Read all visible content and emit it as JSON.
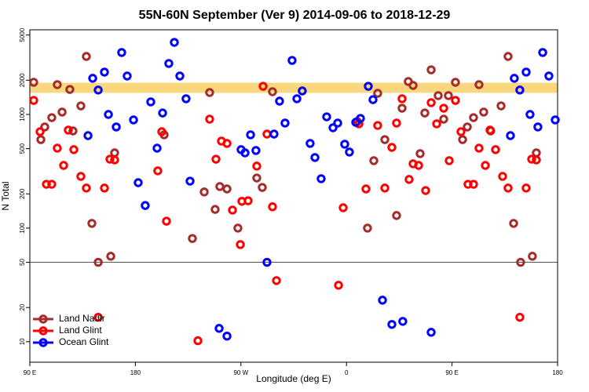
{
  "chart_data": {
    "type": "scatter",
    "title": "55N-60N September (Ver 9)   2014-09-06 to 2018-12-29",
    "x_label": "Longitude (deg E)",
    "y_label": "N Total",
    "xlim": [
      90,
      540
    ],
    "xticks": [
      {
        "value": 90,
        "label": "90 E"
      },
      {
        "value": 180,
        "label": "180"
      },
      {
        "value": 270,
        "label": "90 W"
      },
      {
        "value": 360,
        "label": "0"
      },
      {
        "value": 450,
        "label": "90 E"
      },
      {
        "value": 540,
        "label": "180"
      }
    ],
    "ylim": [
      6.6,
      5560
    ],
    "yticks": [
      10,
      20,
      50,
      100,
      200,
      500,
      1000,
      2000,
      5000
    ],
    "log_y": true,
    "hline": 50,
    "band": [
      1550,
      1900
    ],
    "band_color": "#f9d77e",
    "legend": "lower left",
    "series": [
      {
        "name": "Land Nadir",
        "color": "#a52a2a",
        "x": [
          93.3,
          99.4,
          102.7,
          108.7,
          113.4,
          117.5,
          124.1,
          126.8,
          133.5,
          138.2,
          142.9,
          148.3,
          159,
          162.3,
          204.5,
          228.6,
          238.7,
          243.3,
          248,
          252,
          258.1,
          267.4,
          283.5,
          288.2,
          296.9,
          369.2,
          377.9,
          383.3,
          386.6,
          392.7,
          402.7,
          407.4,
          412.7,
          416.8,
          422.8,
          426.8,
          432.2,
          438.2,
          442.9,
          446.9,
          452.9,
          459,
          463,
          468.3,
          473,
          477,
          483,
          491.8,
          497.8,
          502.5,
          508.5,
          518.5,
          521.9
        ],
        "values": [
          1920,
          601,
          776,
          938,
          1830,
          1050,
          1660,
          716,
          1190,
          3240,
          110,
          50,
          56.5,
          459,
          662,
          81,
          208,
          1560,
          146,
          232,
          221,
          100,
          276,
          228,
          1585,
          867,
          100,
          392,
          1535,
          601,
          129,
          1135,
          1950,
          1800,
          452,
          1030,
          2470,
          1465,
          909,
          1465,
          1920,
          601,
          776,
          938,
          1830,
          1050,
          716,
          1190,
          3240,
          110,
          50,
          56.5,
          459
        ]
      },
      {
        "name": "Land Glint",
        "color": "#ff0000",
        "x": [
          93.3,
          98.7,
          104.1,
          108.7,
          113.4,
          118.8,
          122.8,
          127.5,
          133.5,
          138.2,
          148.3,
          153.6,
          158.3,
          162.3,
          199.1,
          202.5,
          206.5,
          233.3,
          243.3,
          248.7,
          253.4,
          258.1,
          262.8,
          269.5,
          270.8,
          276.1,
          283.5,
          288.9,
          292.2,
          296.9,
          300.3,
          353.2,
          357.2,
          370.6,
          376.6,
          386.6,
          392.7,
          398.7,
          402.7,
          407.4,
          413.4,
          416.8,
          421.5,
          427.5,
          432.2,
          436.9,
          442.9,
          447.6,
          452.9,
          457.6,
          463.6,
          468.3,
          473,
          478.4,
          482.4,
          487.1,
          493.1,
          497.8,
          507.8,
          513.2,
          517.9,
          521.9
        ],
        "values": [
          1330,
          705,
          243,
          243,
          505,
          356,
          728,
          490,
          285,
          225,
          16.4,
          225,
          404,
          398,
          319,
          705,
          115,
          10.2,
          909,
          404,
          583,
          556,
          144,
          71.6,
          172,
          174,
          351,
          1770,
          672,
          154,
          34.5,
          31.4,
          151,
          827,
          221,
          800,
          225,
          513,
          840,
          1375,
          268,
          368,
          356,
          214,
          1270,
          827,
          1135,
          392,
          1330,
          705,
          243,
          243,
          505,
          356,
          728,
          490,
          285,
          225,
          16.4,
          225,
          404,
          398
        ]
      },
      {
        "name": "Ocean Glint",
        "color": "#0000ff",
        "x": [
          139.6,
          143.6,
          148.3,
          153.6,
          157,
          163.7,
          168.3,
          173,
          178.4,
          182.4,
          188.4,
          193.1,
          198.5,
          203.2,
          208.5,
          213.2,
          217.9,
          223.2,
          226.6,
          251.4,
          258.1,
          270.1,
          273.5,
          278.2,
          282.8,
          292.2,
          298.2,
          302.9,
          307.6,
          313.6,
          317.7,
          322.3,
          329,
          333.1,
          338.4,
          343.1,
          348.5,
          352.5,
          358.5,
          362.5,
          367.9,
          371.9,
          378.6,
          382.6,
          390.7,
          398.7,
          408,
          432.2,
          499.8,
          503.1,
          507.8,
          513.2,
          516.5,
          523.2,
          527.3,
          532.6,
          538
        ],
        "values": [
          651,
          2080,
          1640,
          2360,
          1000,
          776,
          3510,
          2180,
          895,
          251,
          158,
          1290,
          505,
          1030,
          2810,
          4310,
          2180,
          1375,
          259,
          13.1,
          11.2,
          490,
          459,
          662,
          482,
          50,
          672,
          1310,
          840,
          2990,
          1375,
          1610,
          556,
          418,
          272,
          953,
          764,
          840,
          547,
          467,
          853,
          923,
          1770,
          1350,
          23.2,
          14.2,
          15.1,
          12.1,
          651,
          2080,
          1640,
          2360,
          1000,
          776,
          3510,
          2180,
          895
        ]
      }
    ]
  }
}
